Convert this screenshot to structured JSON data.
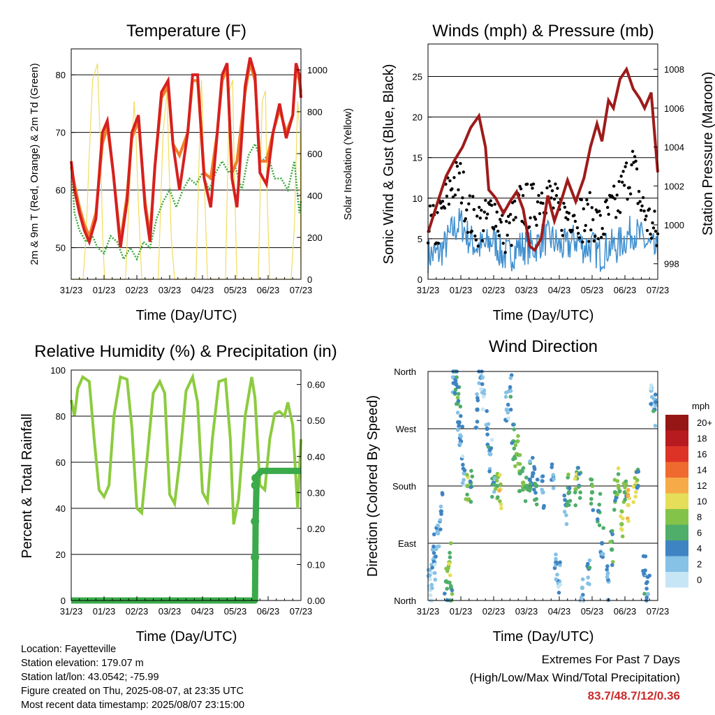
{
  "colors": {
    "temp_2m": "#d62020",
    "temp_9m": "#f07f2a",
    "dewpoint": "#3aa83a",
    "solar": "#f2dc5a",
    "wind": "#3f8fcf",
    "gust": "#000000",
    "pressure": "#9e1b1b",
    "rh": "#8ccb3f",
    "precip": "#3aaa4a"
  },
  "location": {
    "location_line": "Location: Fayetteville",
    "elevation_line": "Station elevation: 179.07 m",
    "latlon_line": "Station lat/lon: 43.0542; -75.99",
    "created_line": "Figure created on Thu, 2025-08-07, at 23:35 UTC",
    "timestamp_line": "Most recent data timestamp: 2025/08/07 23:15:00"
  },
  "extremes": {
    "line1": "Extremes For Past 7 Days",
    "line2": "(High/Low/Max Wind/Total Precipitation)",
    "values": "83.7/48.7/12/0.36"
  },
  "chart_data": [
    {
      "type": "line",
      "title": "Temperature (F)",
      "xlabel": "Time (Day/UTC)",
      "ylabel": "2m & 9m T (Red, Orange) & 2m Td (Green)",
      "y2label": "Solar Insolation (Yellow)",
      "x_ticks": [
        "31/23",
        "01/23",
        "02/23",
        "03/23",
        "04/23",
        "05/23",
        "06/23",
        "07/23"
      ],
      "xlim": [
        0,
        7
      ],
      "ylim": [
        44.5,
        84.5
      ],
      "y_ticks": [
        50,
        60,
        70,
        80
      ],
      "y2lim": [
        0,
        1100
      ],
      "y2_ticks": [
        0,
        200,
        400,
        600,
        800,
        1000
      ],
      "grid": true,
      "series": [
        {
          "name": "2m T",
          "x": [
            0,
            0.1,
            0.25,
            0.4,
            0.55,
            0.75,
            0.95,
            1.1,
            1.28,
            1.5,
            1.7,
            1.85,
            2.05,
            2.25,
            2.4,
            2.55,
            2.75,
            2.95,
            3.1,
            3.3,
            3.55,
            3.7,
            3.85,
            4.05,
            4.25,
            4.45,
            4.6,
            4.75,
            4.9,
            5.05,
            5.3,
            5.45,
            5.6,
            5.75,
            5.95,
            6.15,
            6.35,
            6.55,
            6.75,
            6.85,
            6.95,
            7
          ],
          "values": [
            65,
            60,
            56,
            53,
            51,
            55,
            70,
            72,
            63,
            50,
            58,
            70,
            73,
            57,
            51,
            64,
            77,
            79,
            68,
            60,
            70,
            80,
            80,
            62,
            57,
            70,
            80,
            82,
            62,
            57,
            78,
            83,
            80,
            63,
            61,
            70,
            75,
            69,
            73,
            82,
            80,
            76
          ]
        },
        {
          "name": "9m T",
          "x": [
            0,
            0.1,
            0.25,
            0.4,
            0.55,
            0.75,
            0.95,
            1.1,
            1.28,
            1.5,
            1.7,
            1.85,
            2.05,
            2.25,
            2.4,
            2.55,
            2.75,
            2.95,
            3.1,
            3.3,
            3.55,
            3.7,
            3.85,
            4.05,
            4.25,
            4.45,
            4.6,
            4.75,
            4.9,
            5.05,
            5.3,
            5.45,
            5.6,
            5.75,
            5.95,
            6.15,
            6.35,
            6.55,
            6.75,
            6.85,
            6.95,
            7
          ],
          "values": [
            64,
            61,
            57,
            54,
            52,
            56,
            68,
            71,
            63,
            51,
            59,
            69,
            72,
            58,
            52,
            64,
            76,
            78,
            68,
            66,
            70,
            79,
            79,
            63,
            62,
            70,
            79,
            81,
            63,
            65,
            77,
            82,
            79,
            65,
            65,
            70,
            74,
            70,
            73,
            81,
            79,
            77
          ]
        },
        {
          "name": "2m Td",
          "x": [
            0,
            0.1,
            0.25,
            0.45,
            0.65,
            0.8,
            1,
            1.2,
            1.4,
            1.6,
            1.8,
            2,
            2.2,
            2.4,
            2.6,
            2.8,
            3,
            3.2,
            3.4,
            3.6,
            3.8,
            4,
            4.2,
            4.4,
            4.6,
            4.8,
            5,
            5.2,
            5.4,
            5.6,
            5.8,
            6,
            6.2,
            6.4,
            6.6,
            6.8,
            6.95,
            7
          ],
          "values": [
            64,
            56,
            53,
            51,
            52,
            50,
            49,
            52,
            51,
            48,
            50,
            48,
            51,
            50,
            55,
            58,
            60,
            57,
            60,
            62,
            61,
            63,
            60,
            63,
            65,
            63,
            64,
            60,
            66,
            68,
            65,
            66,
            62,
            62,
            60,
            65,
            56,
            58
          ]
        },
        {
          "name": "Solar",
          "x": [
            0,
            0.1,
            0.2,
            0.3,
            0.36,
            0.45,
            0.55,
            0.65,
            0.8,
            0.9,
            0.96,
            1.02,
            1.1,
            1.25,
            1.35,
            1.5,
            1.65,
            1.8,
            1.92,
            1.97,
            2.05,
            2.15,
            2.3,
            2.4,
            2.5,
            2.65,
            2.8,
            2.92,
            2.97,
            3.05,
            3.15,
            3.3,
            3.45,
            3.6,
            3.8,
            3.92,
            3.97,
            4.05,
            4.15,
            4.3,
            4.5,
            4.7,
            4.82,
            4.92,
            4.97,
            5.05,
            5.15,
            5.3,
            5.5,
            5.7,
            5.82,
            5.92,
            5.97,
            6.05,
            6.15,
            6.3,
            6.45,
            6.55,
            6.7,
            6.8,
            6.9,
            6.97,
            7
          ],
          "values": [
            0,
            0,
            0,
            0,
            0,
            200,
            600,
            950,
            1030,
            600,
            200,
            0,
            0,
            0,
            0,
            0,
            0,
            500,
            850,
            700,
            350,
            0,
            0,
            0,
            0,
            0,
            700,
            900,
            600,
            200,
            0,
            0,
            0,
            0,
            0,
            700,
            950,
            500,
            0,
            0,
            0,
            0,
            900,
            950,
            500,
            0,
            0,
            0,
            0,
            0,
            850,
            900,
            400,
            0,
            0,
            0,
            0,
            0,
            0,
            250,
            850,
            700,
            0
          ]
        }
      ]
    },
    {
      "type": "line",
      "title": "Winds (mph) & Pressure (mb)",
      "xlabel": "Time (Day/UTC)",
      "ylabel": "Sonic Wind & Gust (Blue, Black)",
      "y2label": "Station Pressure (Maroon)",
      "x_ticks": [
        "31/23",
        "01/23",
        "02/23",
        "03/23",
        "04/23",
        "05/23",
        "06/23",
        "07/23"
      ],
      "xlim": [
        0,
        7
      ],
      "ylim": [
        0,
        29
      ],
      "y_ticks": [
        0,
        5,
        10,
        15,
        20,
        25
      ],
      "y2lim": [
        997.2,
        1009.3
      ],
      "y2_ticks": [
        998,
        1000,
        1002,
        1004,
        1006,
        1008
      ],
      "grid": true,
      "series": [
        {
          "name": "Sonic Wind",
          "x": [
            0,
            0.25,
            0.5,
            0.75,
            1,
            1.25,
            1.5,
            1.75,
            2,
            2.25,
            2.5,
            2.75,
            3,
            3.25,
            3.5,
            3.75,
            4,
            4.25,
            4.5,
            4.75,
            5,
            5.25,
            5.5,
            5.75,
            6,
            6.25,
            6.5,
            6.75,
            7
          ],
          "values": [
            3,
            3,
            4,
            6,
            7,
            5,
            4,
            4,
            5,
            3,
            3,
            4,
            4,
            4,
            5,
            5,
            4,
            4,
            5,
            4,
            4,
            3,
            4,
            4,
            5,
            6,
            5,
            4,
            3
          ]
        },
        {
          "name": "Gust",
          "x": [
            0,
            0.25,
            0.5,
            0.75,
            1,
            1.25,
            1.5,
            1.75,
            2,
            2.25,
            2.5,
            2.75,
            3,
            3.25,
            3.5,
            3.75,
            4,
            4.25,
            4.5,
            4.75,
            5,
            5.25,
            5.5,
            5.75,
            6,
            6.25,
            6.5,
            6.75,
            7
          ],
          "values": [
            7,
            6,
            9,
            12,
            12,
            8,
            7,
            7,
            9,
            6,
            6,
            9,
            9,
            9,
            11,
            10,
            8,
            8,
            9,
            7,
            8,
            6,
            8,
            9,
            12,
            14,
            9,
            7,
            5
          ]
        },
        {
          "name": "Station Pressure",
          "x": [
            0,
            0.3,
            0.55,
            0.8,
            1.05,
            1.3,
            1.55,
            1.75,
            1.85,
            2.05,
            2.3,
            2.5,
            2.7,
            2.9,
            3.1,
            3.25,
            3.45,
            3.65,
            3.85,
            4.05,
            4.25,
            4.5,
            4.75,
            4.95,
            5.15,
            5.3,
            5.5,
            5.65,
            5.85,
            6.05,
            6.25,
            6.45,
            6.6,
            6.8,
            7
          ],
          "values": [
            999.6,
            1001.2,
            1002.5,
            1003.3,
            1004.0,
            1005.0,
            1005.6,
            1004.0,
            1001.8,
            1001.4,
            1000.6,
            1001.2,
            1001.7,
            1000.8,
            998.9,
            998.7,
            999.3,
            1001.5,
            1000.2,
            1001.2,
            1002.3,
            1001.2,
            1002.4,
            1004.0,
            1005.2,
            1004.3,
            1006.4,
            1006.0,
            1007.5,
            1008.0,
            1007.0,
            1006.5,
            1006.0,
            1006.8,
            1002.7
          ]
        }
      ]
    },
    {
      "type": "line",
      "title": "Relative Humidity (%) & Precipitation (in)",
      "xlabel": "Time (Day/UTC)",
      "ylabel": "Percent & Total Rainfall",
      "x_ticks": [
        "31/23",
        "01/23",
        "02/23",
        "03/23",
        "04/23",
        "05/23",
        "06/23",
        "07/23"
      ],
      "xlim": [
        0,
        7
      ],
      "ylim": [
        0,
        100
      ],
      "y_ticks": [
        0,
        20,
        40,
        60,
        80,
        100
      ],
      "y2lim": [
        0,
        0.64
      ],
      "y2_ticks": [
        0.0,
        0.1,
        0.2,
        0.3,
        0.4,
        0.5,
        0.6
      ],
      "grid": true,
      "series": [
        {
          "name": "RH",
          "x": [
            0,
            0.1,
            0.2,
            0.35,
            0.55,
            0.7,
            0.85,
            1,
            1.15,
            1.3,
            1.5,
            1.7,
            1.85,
            2,
            2.15,
            2.3,
            2.5,
            2.7,
            2.85,
            3,
            3.15,
            3.3,
            3.5,
            3.7,
            3.85,
            4,
            4.15,
            4.3,
            4.5,
            4.7,
            4.85,
            4.95,
            5.1,
            5.3,
            5.5,
            5.6,
            5.75,
            5.9,
            6.05,
            6.2,
            6.35,
            6.5,
            6.6,
            6.75,
            6.9,
            7
          ],
          "values": [
            87,
            80,
            92,
            97,
            95,
            70,
            48,
            45,
            50,
            80,
            97,
            96,
            75,
            40,
            38,
            60,
            90,
            95,
            90,
            46,
            42,
            60,
            91,
            97,
            86,
            47,
            43,
            70,
            95,
            96,
            70,
            33,
            44,
            80,
            97,
            88,
            50,
            48,
            70,
            81,
            82,
            80,
            86,
            76,
            40,
            70
          ]
        },
        {
          "name": "Total Precipitation",
          "x": [
            0,
            1,
            2,
            3,
            4,
            5,
            5.55,
            5.6,
            5.61,
            5.62,
            5.65,
            5.7,
            5.8,
            6,
            6.5,
            7
          ],
          "values": [
            0,
            0,
            0,
            0,
            0,
            0,
            0,
            0,
            0.12,
            0.22,
            0.34,
            0.35,
            0.36,
            0.36,
            0.36,
            0.36
          ]
        }
      ]
    },
    {
      "type": "scatter",
      "title": "Wind Direction",
      "xlabel": "Time (Day/UTC)",
      "ylabel": "Direction (Colored By Speed)",
      "x_ticks": [
        "31/23",
        "01/23",
        "02/23",
        "03/23",
        "04/23",
        "05/23",
        "06/23",
        "07/23"
      ],
      "xlim": [
        0,
        7
      ],
      "ylim": [
        0,
        360
      ],
      "y_ticks": [
        "North",
        "East",
        "South",
        "West",
        "North"
      ],
      "y_tick_values": [
        0,
        90,
        180,
        270,
        360
      ],
      "grid": true,
      "colorbar": {
        "label": "mph",
        "ticks": [
          "0",
          "2",
          "4",
          "6",
          "8",
          "10",
          "12",
          "14",
          "16",
          "18",
          "20+"
        ],
        "colors": [
          "#c6e6f5",
          "#86c1e6",
          "#3f84c2",
          "#4fae6a",
          "#84c34a",
          "#e6de58",
          "#f6ab48",
          "#ef6a2e",
          "#dd3327",
          "#b81b1f",
          "#961616"
        ]
      },
      "series": [
        {
          "name": "Direction",
          "x": [
            0.05,
            0.1,
            0.15,
            0.2,
            0.3,
            0.4,
            0.55,
            0.65,
            0.7,
            0.8,
            0.85,
            0.9,
            0.95,
            1.0,
            1.1,
            1.2,
            1.3,
            1.5,
            1.6,
            1.7,
            1.8,
            1.9,
            2.0,
            2.1,
            2.2,
            2.4,
            2.5,
            2.6,
            2.7,
            2.8,
            2.9,
            3.0,
            3.1,
            3.2,
            3.3,
            3.5,
            3.8,
            3.9,
            4.0,
            4.2,
            4.3,
            4.5,
            4.6,
            4.7,
            4.9,
            5.0,
            5.2,
            5.3,
            5.5,
            5.6,
            5.7,
            5.8,
            5.9,
            6.0,
            6.1,
            6.3,
            6.4,
            6.6,
            6.7,
            6.8,
            6.9
          ],
          "values": [
            40,
            20,
            80,
            60,
            110,
            140,
            30,
            60,
            20,
            350,
            340,
            310,
            280,
            250,
            200,
            180,
            185,
            300,
            350,
            330,
            270,
            230,
            185,
            180,
            175,
            300,
            330,
            250,
            230,
            200,
            185,
            180,
            190,
            200,
            180,
            170,
            190,
            60,
            30,
            150,
            170,
            175,
            180,
            20,
            50,
            170,
            140,
            90,
            30,
            80,
            170,
            180,
            120,
            170,
            150,
            180,
            180,
            40,
            10,
            330,
            300
          ],
          "speeds": [
            2,
            1,
            3,
            2,
            3,
            4,
            7,
            8,
            6,
            4,
            5,
            6,
            4,
            4,
            3,
            8,
            6,
            4,
            3,
            2,
            4,
            3,
            5,
            7,
            10,
            3,
            4,
            6,
            8,
            7,
            8,
            7,
            5,
            4,
            6,
            3,
            3,
            4,
            3,
            4,
            7,
            8,
            5,
            3,
            4,
            7,
            5,
            4,
            3,
            6,
            7,
            8,
            9,
            7,
            11,
            9,
            7,
            4,
            3,
            2,
            4
          ]
        }
      ]
    }
  ]
}
